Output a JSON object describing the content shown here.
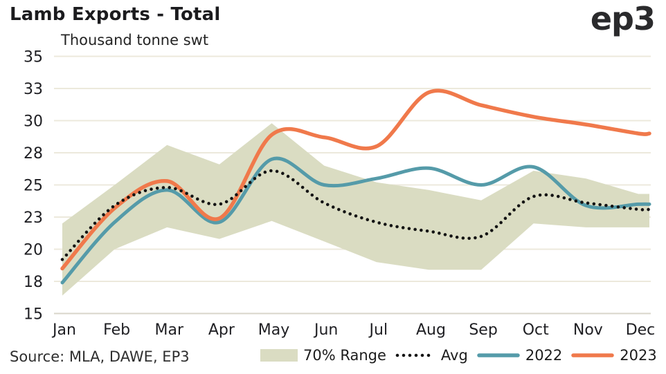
{
  "header": {
    "title": "Lamb Exports - Total",
    "subtitle": "Thousand tonne swt",
    "logo": "ep3"
  },
  "footer": {
    "source": "Source: MLA, DAWE, EP3"
  },
  "colors": {
    "band": "#DADCC2",
    "avg": "#141414",
    "line_2022": "#559BA9",
    "line_2023": "#F0794B",
    "grid": "#ECE9DC",
    "axis_line": "#D8D6CA",
    "text": "#1F1F23"
  },
  "chart_data": {
    "type": "line",
    "title": "Lamb Exports - Total",
    "ylabel": "Thousand tonne swt",
    "xlabel": "",
    "categories": [
      "Jan",
      "Feb",
      "Mar",
      "Apr",
      "May",
      "Jun",
      "Jul",
      "Aug",
      "Sep",
      "Oct",
      "Nov",
      "Dec"
    ],
    "ylim": [
      15,
      35
    ],
    "grid": true,
    "legend_position": "bottom",
    "y_axis": {
      "tick_values": [
        35,
        32.5,
        30,
        27.5,
        25,
        22.5,
        20,
        17.5,
        15
      ],
      "tick_labels": [
        "35",
        "33",
        "30",
        "28",
        "25",
        "23",
        "20",
        "18",
        "15"
      ]
    },
    "series": [
      {
        "name": "70% Range",
        "type": "band",
        "color": "#DADCC2",
        "low": [
          16.4,
          20.0,
          21.7,
          20.8,
          22.2,
          20.6,
          19.0,
          18.4,
          18.4,
          22.0,
          21.7,
          21.7
        ],
        "high": [
          22.0,
          25.0,
          28.1,
          26.6,
          29.8,
          26.5,
          25.2,
          24.6,
          23.8,
          26.1,
          25.5,
          24.3
        ]
      },
      {
        "name": "Avg",
        "type": "dotted",
        "color": "#141414",
        "values": [
          19.2,
          23.4,
          24.8,
          23.5,
          26.1,
          23.6,
          22.1,
          21.4,
          21.0,
          24.1,
          23.6,
          23.1
        ]
      },
      {
        "name": "2022",
        "type": "line",
        "color": "#559BA9",
        "values": [
          17.4,
          22.1,
          24.6,
          22.1,
          27.0,
          25.0,
          25.5,
          26.3,
          25.0,
          26.4,
          23.4,
          23.5
        ]
      },
      {
        "name": "2023",
        "type": "line",
        "color": "#F0794B",
        "values": [
          18.5,
          23.2,
          25.3,
          22.4,
          28.9,
          28.7,
          28.0,
          32.2,
          31.2,
          30.3,
          29.7,
          29.0
        ]
      }
    ]
  }
}
